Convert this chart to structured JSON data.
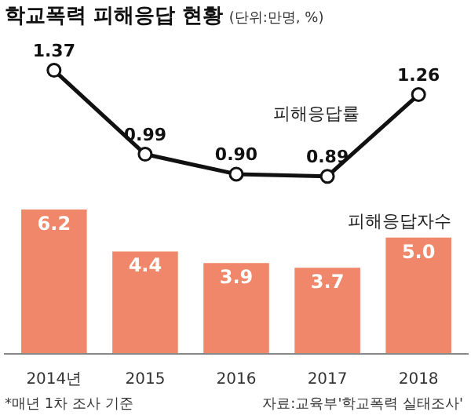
{
  "chart_data": [
    {
      "type": "line",
      "title": "학교폭력 피해응답 현황",
      "subtitle": "(단위:만명, %)",
      "categories": [
        null,
        null,
        null,
        null,
        null
      ],
      "tick_labels": false,
      "series": [
        {
          "name": "피해응답률",
          "color": "#111111",
          "values": [
            1.37,
            0.99,
            0.9,
            0.89,
            1.26
          ],
          "value_labels": [
            "1.37",
            "0.99",
            "0.90",
            "0.89",
            "1.26"
          ]
        }
      ],
      "marker": "circle",
      "line_style": "solid"
    },
    {
      "type": "bar",
      "tick_labels": "x",
      "categories": [
        "2014년",
        "2015",
        "2016",
        "2017",
        "2018"
      ],
      "series": [
        {
          "name": "피해응답자수",
          "color": "#f0876a",
          "values": [
            6.2,
            4.4,
            3.9,
            3.7,
            5.0
          ],
          "value_labels": [
            "6.2",
            "4.4",
            "3.9",
            "3.7",
            "5.0"
          ]
        }
      ],
      "annotations": [
        "*매년 1차 조사 기준",
        "자료:교육부'학교폭력 실태조사'"
      ]
    }
  ]
}
